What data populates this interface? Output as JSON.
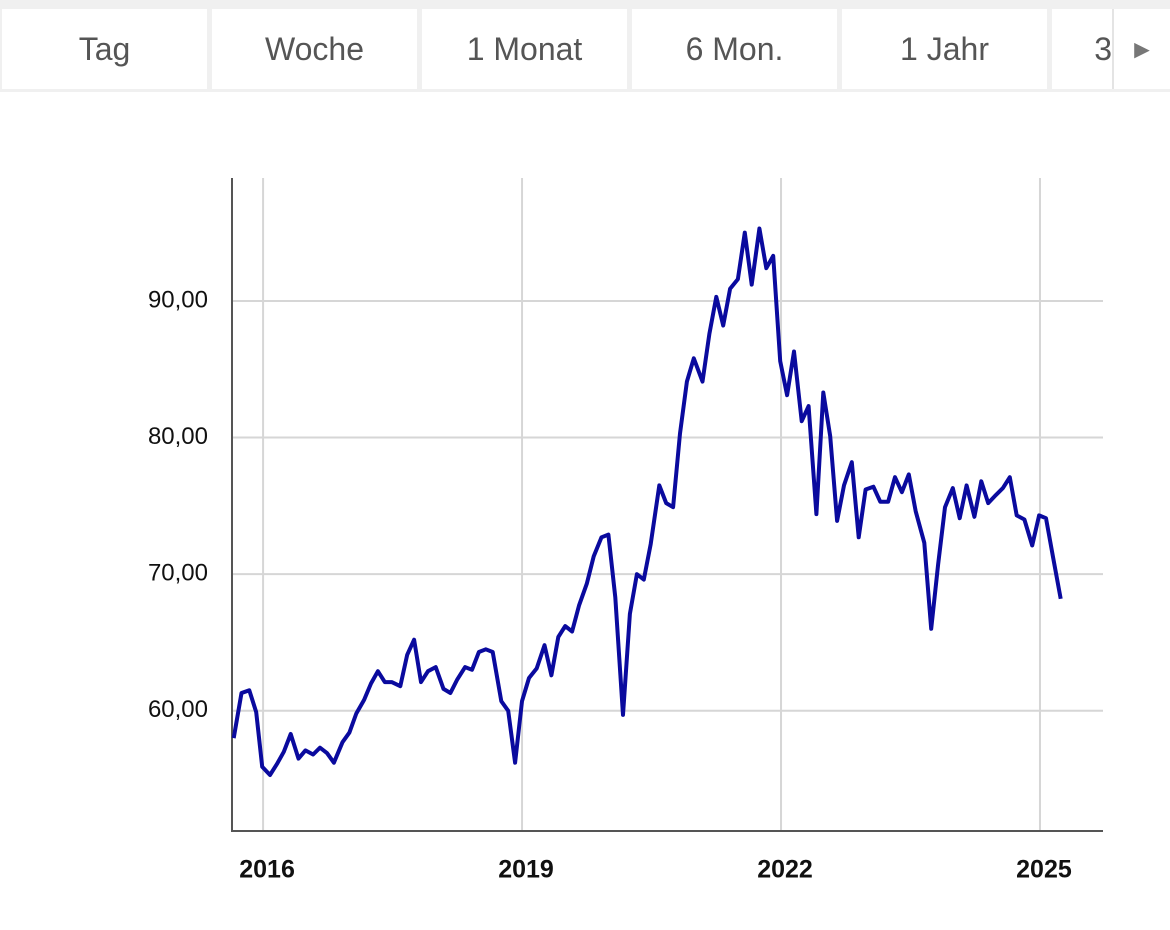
{
  "tabs": [
    "Tag",
    "Woche",
    "1 Monat",
    "6 Mon.",
    "1 Jahr",
    "3"
  ],
  "scroll_button": "►",
  "chart_data": {
    "type": "line",
    "x": [
      2015.66,
      2015.75,
      2015.84,
      2015.92,
      2015.99,
      2016.08,
      2016.16,
      2016.24,
      2016.32,
      2016.41,
      2016.49,
      2016.58,
      2016.66,
      2016.74,
      2016.82,
      2016.92,
      2017.0,
      2017.08,
      2017.17,
      2017.25,
      2017.33,
      2017.41,
      2017.49,
      2017.59,
      2017.67,
      2017.75,
      2017.83,
      2017.91,
      2018.0,
      2018.09,
      2018.17,
      2018.25,
      2018.34,
      2018.42,
      2018.5,
      2018.58,
      2018.66,
      2018.76,
      2018.84,
      2018.92,
      2019.0,
      2019.08,
      2019.17,
      2019.26,
      2019.34,
      2019.42,
      2019.5,
      2019.58,
      2019.66,
      2019.75,
      2019.83,
      2019.92,
      2020.0,
      2020.08,
      2020.17,
      2020.25,
      2020.33,
      2020.41,
      2020.49,
      2020.59,
      2020.67,
      2020.75,
      2020.83,
      2020.91,
      2020.99,
      2021.09,
      2021.17,
      2021.25,
      2021.33,
      2021.41,
      2021.5,
      2021.58,
      2021.66,
      2021.75,
      2021.83,
      2021.91,
      2021.99,
      2022.07,
      2022.15,
      2022.24,
      2022.32,
      2022.41,
      2022.49,
      2022.57,
      2022.65,
      2022.73,
      2022.82,
      2022.9,
      2022.98,
      2023.07,
      2023.15,
      2023.24,
      2023.32,
      2023.4,
      2023.48,
      2023.56,
      2023.66,
      2023.74,
      2023.82,
      2023.9,
      2023.99,
      2024.07,
      2024.15,
      2024.24,
      2024.32,
      2024.4,
      2024.49,
      2024.57,
      2024.65,
      2024.73,
      2024.82,
      2024.91,
      2024.99,
      2025.07,
      2025.15,
      2025.24
    ],
    "series": [
      {
        "color": "#0a0a9e",
        "values": [
          58.0,
          61.3,
          61.5,
          59.9,
          55.9,
          55.3,
          56.1,
          57.0,
          58.3,
          56.5,
          57.1,
          56.8,
          57.3,
          56.9,
          56.2,
          57.7,
          58.4,
          59.8,
          60.8,
          62.0,
          62.9,
          62.1,
          62.1,
          61.8,
          64.1,
          65.2,
          62.1,
          62.9,
          63.2,
          61.6,
          61.3,
          62.3,
          63.2,
          63.0,
          64.3,
          64.5,
          64.3,
          60.7,
          60.0,
          56.2,
          60.7,
          62.4,
          63.1,
          64.8,
          62.6,
          65.4,
          66.2,
          65.8,
          67.7,
          69.3,
          71.3,
          72.7,
          72.9,
          68.3,
          59.7,
          67.1,
          70.0,
          69.6,
          72.2,
          76.5,
          75.2,
          74.9,
          80.3,
          84.1,
          85.8,
          84.1,
          87.6,
          90.3,
          88.2,
          90.9,
          91.6,
          95.0,
          91.2,
          95.3,
          92.4,
          93.3,
          85.6,
          83.1,
          86.3,
          81.2,
          82.3,
          74.4,
          83.3,
          80.1,
          73.9,
          76.5,
          78.2,
          72.7,
          76.2,
          76.4,
          75.3,
          75.3,
          77.1,
          76.0,
          77.3,
          74.6,
          72.3,
          66.0,
          70.7,
          74.9,
          76.3,
          74.1,
          76.5,
          74.2,
          76.8,
          75.2,
          75.8,
          76.3,
          77.1,
          74.3,
          74.0,
          72.1,
          74.3,
          74.1,
          71.3,
          68.2
        ]
      }
    ],
    "xlim": [
      2015.64,
      2025.73
    ],
    "xticks": [
      2016,
      2019,
      2022,
      2025
    ],
    "ylim": [
      51.2,
      99.0
    ],
    "yticks": [
      {
        "value": 60,
        "label": "60,00"
      },
      {
        "value": 70,
        "label": "70,00"
      },
      {
        "value": 80,
        "label": "80,00"
      },
      {
        "value": 90,
        "label": "90,00"
      }
    ],
    "grid": true
  }
}
